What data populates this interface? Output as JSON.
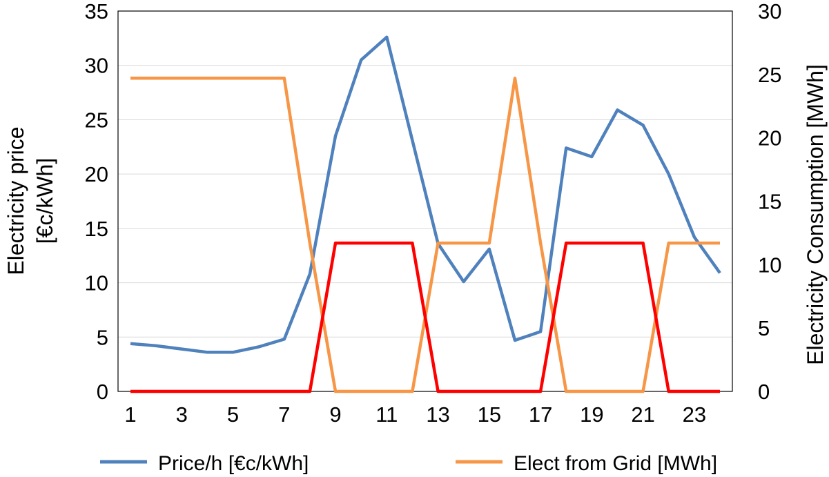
{
  "chart_data": {
    "type": "line",
    "x": [
      1,
      2,
      3,
      4,
      5,
      6,
      7,
      8,
      9,
      10,
      11,
      12,
      13,
      14,
      15,
      16,
      17,
      18,
      19,
      20,
      21,
      22,
      23,
      24
    ],
    "x_tick_labels": [
      "1",
      "3",
      "5",
      "7",
      "9",
      "11",
      "13",
      "15",
      "17",
      "19",
      "21",
      "23"
    ],
    "ylabel_left_line1": "Electricity price",
    "ylabel_left_line2": "[€c/kWh]",
    "ylabel_right": "Electricity Consumption [MWh]",
    "ylim_left": [
      0,
      35
    ],
    "ylim_right": [
      0,
      30
    ],
    "y_left_ticks": [
      "0",
      "5",
      "10",
      "15",
      "20",
      "25",
      "30",
      "35"
    ],
    "y_right_ticks": [
      "0",
      "5",
      "10",
      "15",
      "20",
      "25",
      "30"
    ],
    "grid": "horizontal",
    "legend_position": "bottom",
    "series": [
      {
        "name": "Price/h [€c/kWh]",
        "axis": "left",
        "color": "#4f81bd",
        "values": [
          4.4,
          4.2,
          3.9,
          3.6,
          3.6,
          4.1,
          4.8,
          10.8,
          23.5,
          30.5,
          32.6,
          23.1,
          13.6,
          10.1,
          13.1,
          4.7,
          5.5,
          22.4,
          21.6,
          25.9,
          24.5,
          20.0,
          14.2,
          10.9
        ]
      },
      {
        "name": "Elect from Grid [MWh]",
        "axis": "right",
        "color": "#f79646",
        "values": [
          24.7,
          24.7,
          24.7,
          24.7,
          24.7,
          24.7,
          24.7,
          11.7,
          0,
          0,
          0,
          0,
          11.7,
          11.7,
          11.7,
          24.7,
          11.7,
          0,
          0,
          0,
          0,
          11.7,
          11.7,
          11.7
        ]
      },
      {
        "axis": "right",
        "color": "#ff0000",
        "values": [
          0,
          0,
          0,
          0,
          0,
          0,
          0,
          0,
          11.7,
          11.7,
          11.7,
          11.7,
          0,
          0,
          0,
          0,
          0,
          11.7,
          11.7,
          11.7,
          11.7,
          0,
          0,
          0
        ]
      }
    ]
  }
}
